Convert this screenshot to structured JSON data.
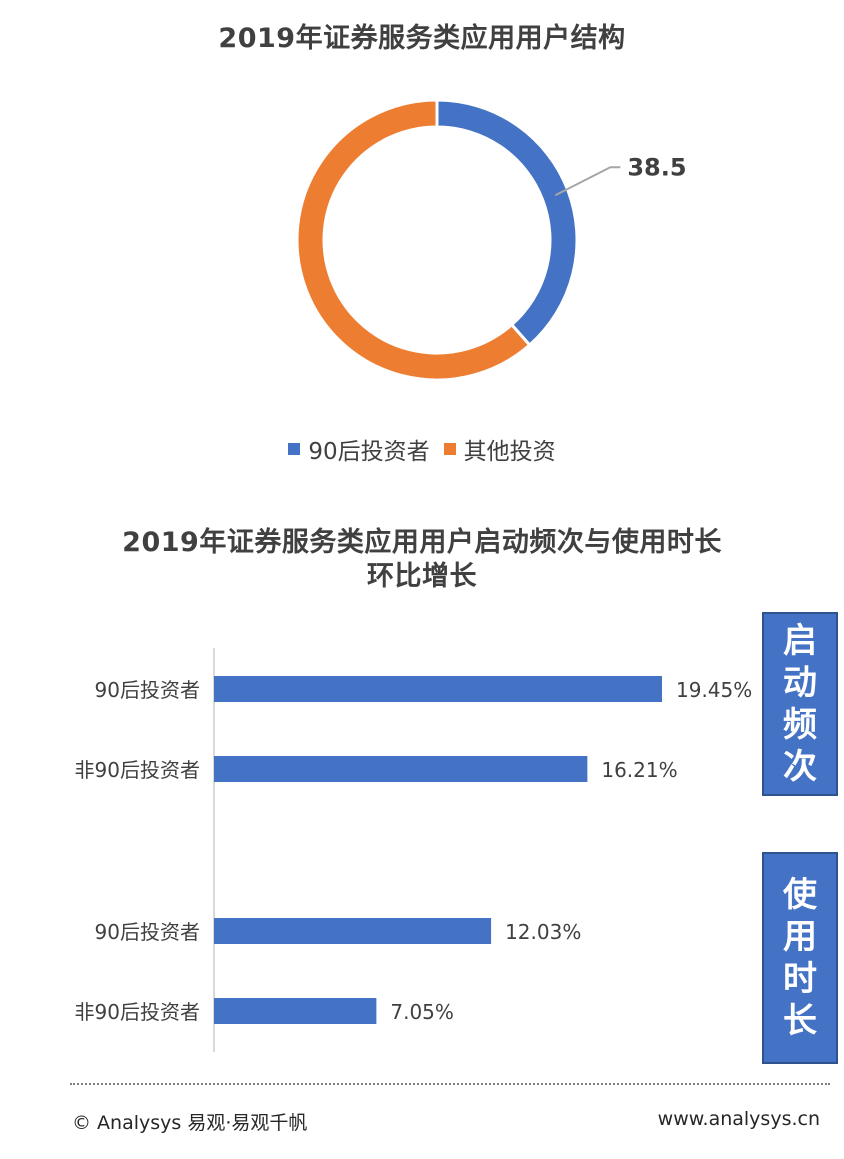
{
  "donut": {
    "title": "2019年证券服务类应用用户结构",
    "label": "38.5",
    "legend": [
      {
        "name": "90后投资者",
        "color": "#4472c4"
      },
      {
        "name": "其他投资",
        "color": "#ed7d31"
      }
    ]
  },
  "bars": {
    "title_line1": "2019年证券服务类应用用户启动频次与使用时长",
    "title_line2": "环比增长",
    "group_labels": [
      "启",
      "动",
      "频",
      "次"
    ],
    "group_labels_2": [
      "使",
      "用",
      "时",
      "长"
    ]
  },
  "footer": {
    "left": "© Analysys 易观·易观千帆",
    "right": "www.analysys.cn"
  },
  "chart_data": [
    {
      "type": "pie",
      "title": "2019年证券服务类应用用户结构",
      "labels": [
        "90后投资者",
        "其他投资"
      ],
      "values": [
        38.5,
        61.5
      ],
      "data_labels": [
        "38.5",
        ""
      ],
      "colors": [
        "#4472c4",
        "#ed7d31"
      ],
      "legend": "bottom"
    },
    {
      "type": "bar",
      "orientation": "horizontal",
      "title": "2019年证券服务类应用用户启动频次与使用时长环比增长",
      "groups": [
        {
          "name": "启动频次",
          "categories": [
            "90后投资者",
            "非90后投资者"
          ],
          "values": [
            19.45,
            16.21
          ],
          "labels": [
            "19.45%",
            "16.21%"
          ]
        },
        {
          "name": "使用时长",
          "categories": [
            "90后投资者",
            "非90后投资者"
          ],
          "values": [
            12.03,
            7.05
          ],
          "labels": [
            "12.03%",
            "7.05%"
          ]
        }
      ],
      "color": "#4472c4",
      "xlim": [
        0,
        19.45
      ]
    }
  ]
}
